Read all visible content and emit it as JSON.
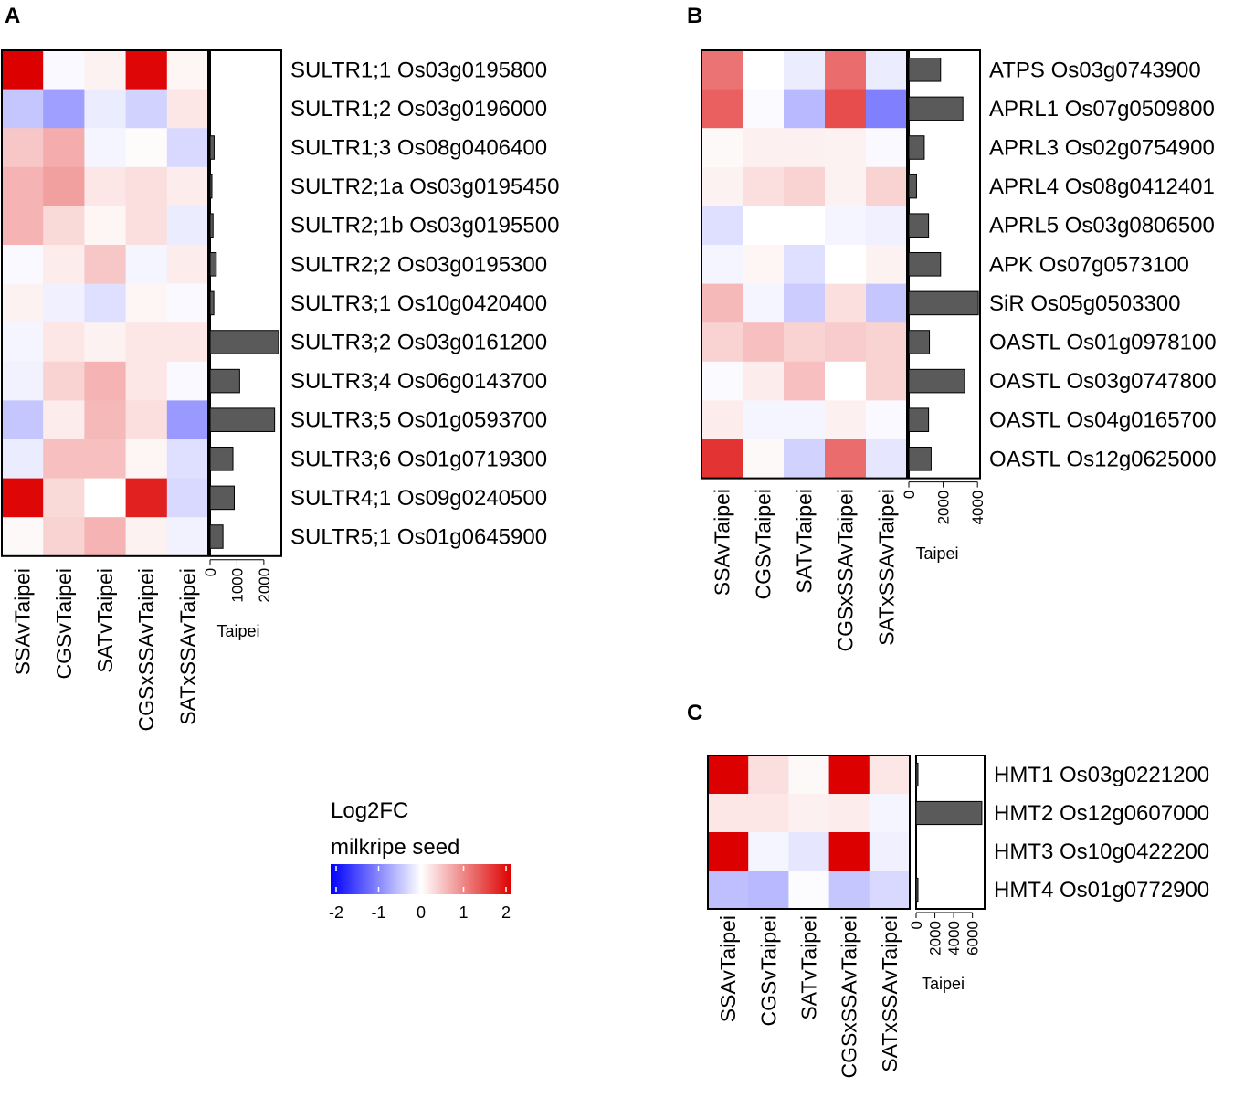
{
  "colorscale": {
    "title_line1": "Log2FC",
    "title_line2": "milkripe seed",
    "min": -2,
    "max": 2,
    "ticks": [
      "-2",
      "-1",
      "0",
      "1",
      "2"
    ],
    "low_color": "#0000ff",
    "mid_color": "#ffffff",
    "high_color": "#dd0000"
  },
  "chart_data": [
    {
      "type": "heatmap",
      "panel": "A",
      "columns": [
        "SSAvTaipei",
        "CGSvTaipei",
        "SATvTaipei",
        "CGSxSSAvTaipei",
        "SATxSSAvTaipei"
      ],
      "rows": [
        "SULTR1;1 Os03g0195800",
        "SULTR1;2 Os03g0196000",
        "SULTR1;3 Os08g0406400",
        "SULTR2;1a Os03g0195450",
        "SULTR2;1b Os03g0195500",
        "SULTR2;2 Os03g0195300",
        "SULTR3;1 Os10g0420400",
        "SULTR3;2 Os03g0161200",
        "SULTR3;4 Os06g0143700",
        "SULTR3;5 Os01g0593700",
        "SULTR3;6 Os01g0719300",
        "SULTR4;1 Os09g0240500",
        "SULTR5;1 Os01g0645900"
      ],
      "values": [
        [
          2.0,
          -0.05,
          0.1,
          1.95,
          0.08
        ],
        [
          -0.45,
          -0.75,
          -0.15,
          -0.35,
          0.2
        ],
        [
          0.45,
          0.65,
          -0.08,
          0.03,
          -0.3
        ],
        [
          0.6,
          0.75,
          0.2,
          0.25,
          0.15
        ],
        [
          0.6,
          0.3,
          0.08,
          0.25,
          -0.15
        ],
        [
          -0.05,
          0.15,
          0.45,
          -0.08,
          0.15
        ],
        [
          0.1,
          -0.12,
          -0.25,
          0.08,
          -0.05
        ],
        [
          -0.08,
          0.2,
          0.1,
          0.2,
          0.2
        ],
        [
          -0.1,
          0.35,
          0.6,
          0.2,
          -0.05
        ],
        [
          -0.45,
          0.15,
          0.55,
          0.25,
          -0.8
        ],
        [
          -0.15,
          0.5,
          0.5,
          0.08,
          -0.25
        ],
        [
          1.95,
          0.3,
          0.0,
          1.75,
          -0.3
        ],
        [
          0.05,
          0.35,
          0.6,
          0.1,
          -0.1
        ]
      ],
      "bar_values": [
        0,
        0,
        150,
        60,
        110,
        230,
        140,
        2550,
        1100,
        2400,
        850,
        900,
        480
      ],
      "bar_xlabel": "Taipei",
      "bar_xlim": [
        0,
        2650
      ],
      "bar_ticks": [
        "0",
        "1000",
        "2000"
      ],
      "bar_tick_values": [
        0,
        1000,
        2000
      ]
    },
    {
      "type": "heatmap",
      "panel": "B",
      "columns": [
        "SSAvTaipei",
        "CGSvTaipei",
        "SATvTaipei",
        "CGSxSSAvTaipei",
        "SATxSSAvTaipei"
      ],
      "rows": [
        "ATPS Os03g0743900",
        "APRL1 Os07g0509800",
        "APRL3 Os02g0754900",
        "APRL4 Os08g0412401",
        "APRL5 Os03g0806500",
        "APK Os07g0573100",
        "SiR Os05g0503300",
        "OASTL Os01g0978100",
        "OASTL Os03g0747800",
        "OASTL Os04g0165700",
        "OASTL Os12g0625000"
      ],
      "values": [
        [
          1.1,
          0.0,
          -0.15,
          1.15,
          -0.15
        ],
        [
          1.25,
          -0.03,
          -0.55,
          1.4,
          -1.0
        ],
        [
          0.05,
          0.12,
          0.12,
          0.1,
          -0.05
        ],
        [
          0.1,
          0.25,
          0.35,
          0.1,
          0.35
        ],
        [
          -0.25,
          0.0,
          0.0,
          -0.08,
          -0.12
        ],
        [
          -0.08,
          0.08,
          -0.25,
          0.0,
          0.1
        ],
        [
          0.55,
          -0.08,
          -0.4,
          0.25,
          -0.45
        ],
        [
          0.35,
          0.5,
          0.35,
          0.4,
          0.35
        ],
        [
          -0.03,
          0.15,
          0.5,
          0.0,
          0.35
        ],
        [
          0.15,
          -0.08,
          -0.08,
          0.12,
          -0.05
        ],
        [
          1.6,
          0.05,
          -0.35,
          1.15,
          -0.2
        ]
      ],
      "bar_values": [
        1850,
        3150,
        900,
        450,
        1150,
        1850,
        4050,
        1200,
        3250,
        1150,
        1300
      ],
      "bar_xlabel": "Taipei",
      "bar_xlim": [
        0,
        4150
      ],
      "bar_ticks": [
        "0",
        "2000",
        "4000"
      ],
      "bar_tick_values": [
        0,
        2000,
        4000
      ]
    },
    {
      "type": "heatmap",
      "panel": "C",
      "columns": [
        "SSAvTaipei",
        "CGSvTaipei",
        "SATvTaipei",
        "CGSxSSAvTaipei",
        "SATxSSAvTaipei"
      ],
      "rows": [
        "HMT1 Os03g0221200",
        "HMT2 Os12g0607000",
        "HMT3 Os10g0422200",
        "HMT4 Os01g0772900"
      ],
      "values": [
        [
          2.0,
          0.25,
          0.05,
          2.0,
          0.2
        ],
        [
          0.2,
          0.2,
          0.12,
          0.15,
          -0.08
        ],
        [
          2.0,
          -0.08,
          -0.2,
          2.0,
          -0.12
        ],
        [
          -0.5,
          -0.55,
          -0.02,
          -0.45,
          -0.3
        ]
      ],
      "bar_values": [
        60,
        7000,
        0,
        60
      ],
      "bar_xlabel": "Taipei",
      "bar_xlim": [
        0,
        7300
      ],
      "bar_ticks": [
        "0",
        "2000",
        "4000",
        "6000"
      ],
      "bar_tick_values": [
        0,
        2000,
        4000,
        6000
      ]
    }
  ]
}
